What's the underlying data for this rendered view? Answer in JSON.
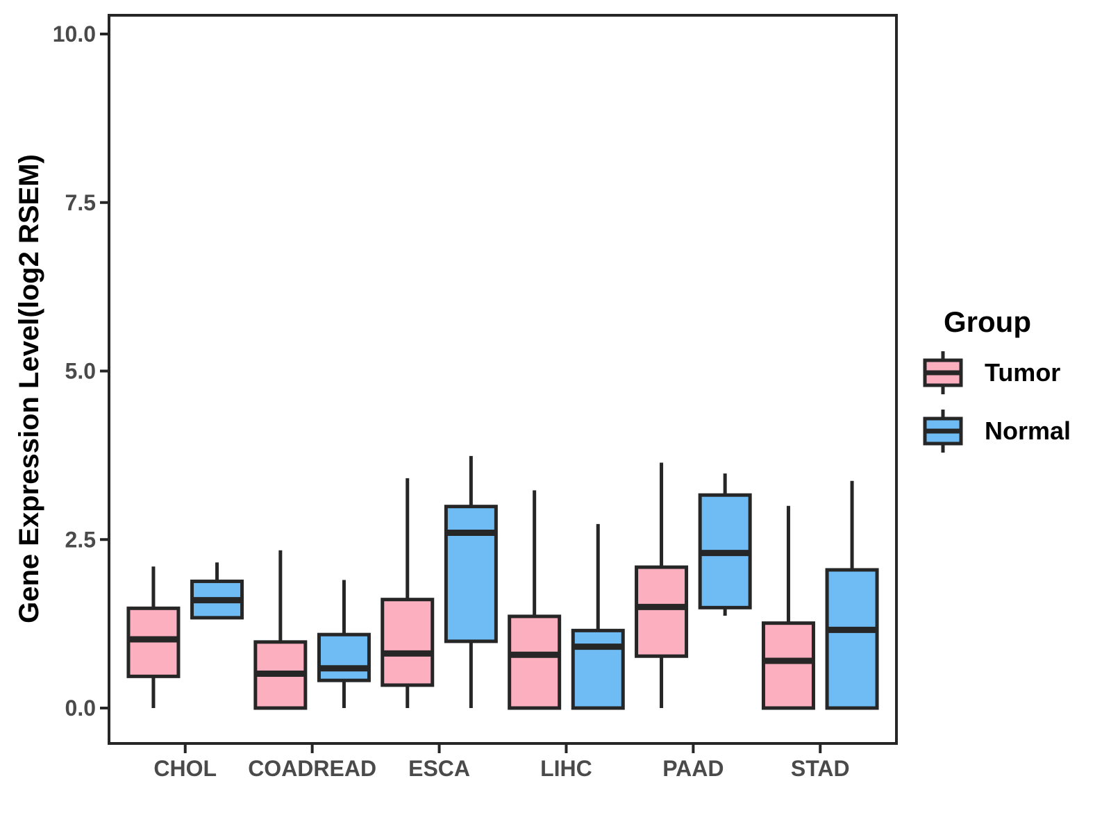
{
  "figure": {
    "y_axis": {
      "title": "Gene Expression Level(log2 RSEM)",
      "ticks": [
        {
          "label": "0.0",
          "value": 0
        },
        {
          "label": "2.5",
          "value": 2.5
        },
        {
          "label": "5.0",
          "value": 5
        },
        {
          "label": "7.5",
          "value": 7.5
        },
        {
          "label": "10.0",
          "value": 10
        }
      ]
    },
    "x_axis": {
      "categories": [
        "CHOL",
        "COADREAD",
        "ESCA",
        "LIHC",
        "PAAD",
        "STAD"
      ]
    },
    "legend": {
      "title": "Group",
      "items": [
        {
          "label": "Tumor",
          "color": "#FBAFBF"
        },
        {
          "label": "Normal",
          "color": "#6FBCF4"
        }
      ]
    }
  },
  "colors": {
    "tumor_fill": "#FBAFBF",
    "normal_fill": "#6FBCF4",
    "box_line": "#262626",
    "axis_line": "#262626",
    "axis_text": "#4A4A4A",
    "title_text": "#000000",
    "background": "#FFFFFF"
  },
  "chart_data": {
    "type": "boxplot",
    "title": "",
    "xlabel": "",
    "ylabel": "Gene Expression Level(log2 RSEM)",
    "ylim": [
      0,
      10
    ],
    "y_ticks": [
      0,
      2.5,
      5.0,
      7.5,
      10.0
    ],
    "grid": false,
    "legend_position": "right",
    "legend_title": "Group",
    "categories": [
      "CHOL",
      "COADREAD",
      "ESCA",
      "LIHC",
      "PAAD",
      "STAD"
    ],
    "series": [
      {
        "name": "Tumor",
        "color": "#FBAFBF",
        "boxes": [
          {
            "min": 0.0,
            "q1": 0.47,
            "median": 1.02,
            "q3": 1.48,
            "max": 2.1
          },
          {
            "min": 0.0,
            "q1": 0.0,
            "median": 0.51,
            "q3": 0.98,
            "max": 2.34
          },
          {
            "min": 0.0,
            "q1": 0.34,
            "median": 0.81,
            "q3": 1.61,
            "max": 3.41
          },
          {
            "min": 0.0,
            "q1": 0.0,
            "median": 0.79,
            "q3": 1.36,
            "max": 3.23
          },
          {
            "min": 0.0,
            "q1": 0.77,
            "median": 1.5,
            "q3": 2.09,
            "max": 3.64
          },
          {
            "min": 0.0,
            "q1": 0.0,
            "median": 0.7,
            "q3": 1.26,
            "max": 3.0
          }
        ]
      },
      {
        "name": "Normal",
        "color": "#6FBCF4",
        "boxes": [
          {
            "min": 1.34,
            "q1": 1.34,
            "median": 1.6,
            "q3": 1.88,
            "max": 2.16
          },
          {
            "min": 0.0,
            "q1": 0.41,
            "median": 0.59,
            "q3": 1.09,
            "max": 1.9
          },
          {
            "min": 0.0,
            "q1": 0.99,
            "median": 2.6,
            "q3": 2.99,
            "max": 3.74
          },
          {
            "min": 0.0,
            "q1": 0.0,
            "median": 0.91,
            "q3": 1.15,
            "max": 2.73
          },
          {
            "min": 1.37,
            "q1": 1.49,
            "median": 2.3,
            "q3": 3.16,
            "max": 3.48
          },
          {
            "min": 0.0,
            "q1": 0.0,
            "median": 1.16,
            "q3": 2.05,
            "max": 3.37
          }
        ]
      }
    ]
  }
}
